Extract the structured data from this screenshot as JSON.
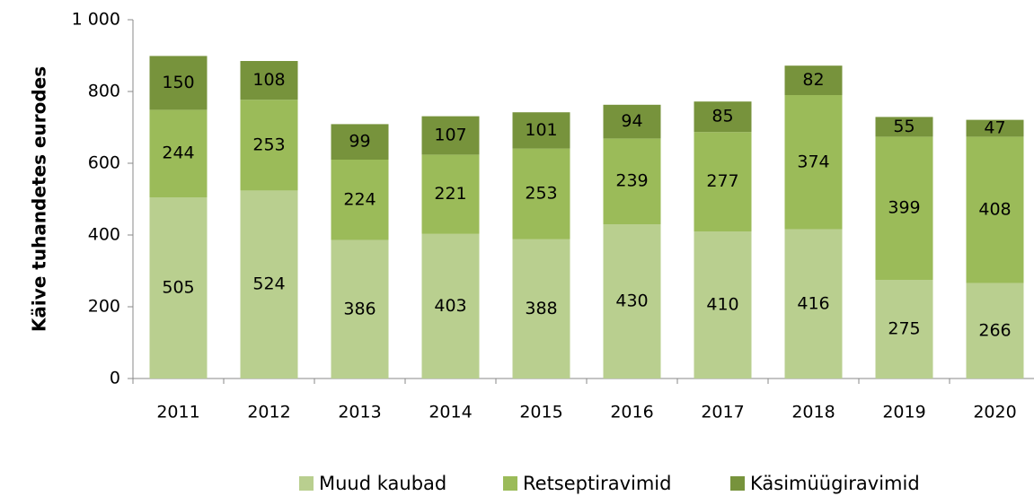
{
  "chart_data": {
    "type": "stacked_bar",
    "y_axis_label": "Käive tuhandetes eurodes",
    "categories": [
      "2011",
      "2012",
      "2013",
      "2014",
      "2015",
      "2016",
      "2017",
      "2018",
      "2019",
      "2020"
    ],
    "series": [
      {
        "name": "Muud kaubad",
        "color": "#b9cf8f",
        "values": [
          505,
          524,
          386,
          403,
          388,
          430,
          410,
          416,
          275,
          266
        ]
      },
      {
        "name": "Retseptiravimid",
        "color": "#9bbb59",
        "values": [
          244,
          253,
          224,
          221,
          253,
          239,
          277,
          374,
          399,
          408
        ]
      },
      {
        "name": "Käsimüügiravimid",
        "color": "#77933c",
        "values": [
          150,
          108,
          99,
          107,
          101,
          94,
          85,
          82,
          55,
          47
        ]
      }
    ],
    "ylim": [
      0,
      1000
    ],
    "yticks": [
      0,
      200,
      400,
      600,
      800,
      {
        "value": 1000,
        "label": "1 000"
      }
    ],
    "legend": "bottom"
  }
}
